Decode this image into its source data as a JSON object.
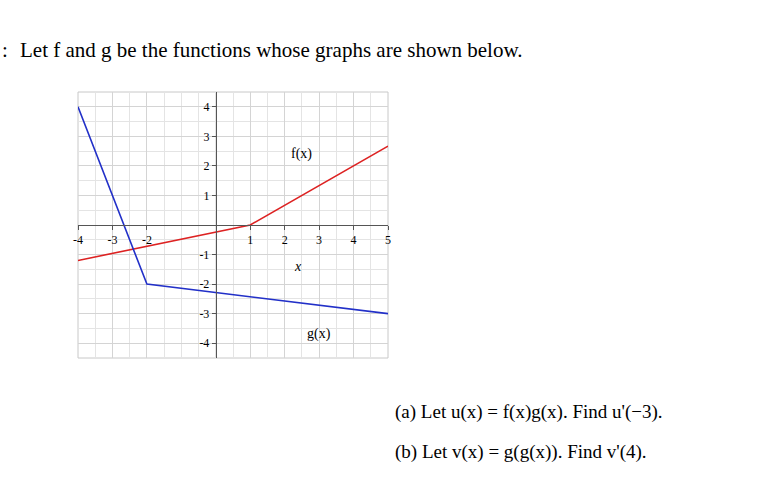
{
  "header": {
    "prefix": ":",
    "text": "Let f and g be the functions whose graphs are shown below."
  },
  "chart_data": {
    "type": "line",
    "xlim": [
      -4,
      5
    ],
    "ylim": [
      -4.5,
      4.5
    ],
    "xticks": [
      -4,
      -3,
      -2,
      1,
      2,
      3,
      4,
      5
    ],
    "yticks": [
      -4,
      -3,
      -2,
      -1,
      1,
      2,
      3,
      4
    ],
    "grid": true,
    "annotations": [
      {
        "text": "x",
        "x": 2.4,
        "y": -1.4
      }
    ],
    "series": [
      {
        "name": "f(x)",
        "color": "#dd2222",
        "x": [
          -4,
          1,
          5
        ],
        "values": [
          -1.2,
          0,
          2.67
        ],
        "label_position": [
          2.5,
          2.4
        ]
      },
      {
        "name": "g(x)",
        "color": "#2230c8",
        "x": [
          -4,
          -2,
          5
        ],
        "values": [
          4,
          -2,
          -3
        ],
        "label_position": [
          3,
          -3.7
        ]
      }
    ]
  },
  "questions": [
    "(a) Let u(x) = f(x)g(x). Find u'(−3).",
    "(b) Let v(x) = g(g(x)). Find v'(4)."
  ]
}
